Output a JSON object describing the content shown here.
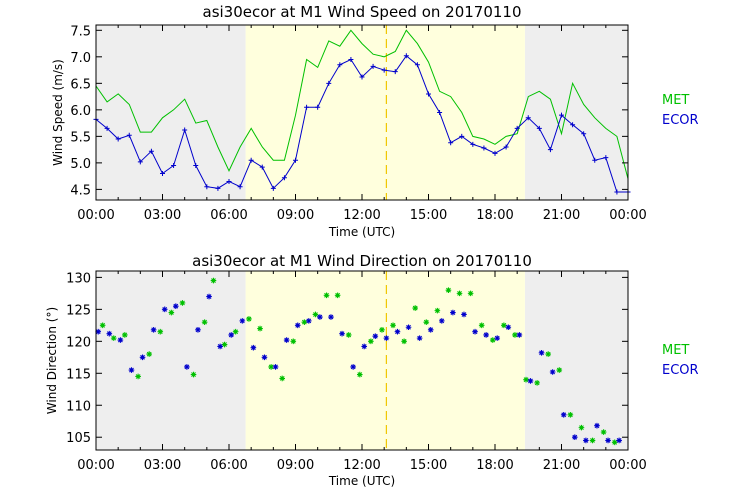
{
  "chart_data": [
    {
      "type": "line",
      "title": "asi30ecor at M1 Wind Speed on 20170110",
      "xlabel": "Time (UTC)",
      "ylabel": "Wind Speed (m/s)",
      "xlim": [
        0,
        24
      ],
      "ylim": [
        4.3,
        7.6
      ],
      "x_ticks": [
        "00:00",
        "03:00",
        "06:00",
        "09:00",
        "12:00",
        "15:00",
        "18:00",
        "21:00",
        "00:00"
      ],
      "y_ticks": [
        "4.5",
        "5.0",
        "5.5",
        "6.0",
        "6.5",
        "7.0",
        "7.5"
      ],
      "y_tick_values": [
        4.5,
        5.0,
        5.5,
        6.0,
        6.5,
        7.0,
        7.5
      ],
      "shaded_night": [
        [
          0,
          6.75
        ],
        [
          19.35,
          24
        ]
      ],
      "shaded_day": [
        6.75,
        19.35
      ],
      "dashed_line_x": 13.1,
      "legend": [
        {
          "label": "MET",
          "color": "#00c000"
        },
        {
          "label": "ECOR",
          "color": "#0000cc"
        }
      ],
      "series": [
        {
          "name": "MET",
          "color": "#00c000",
          "x": [
            0,
            0.5,
            1,
            1.5,
            2,
            2.5,
            3,
            3.5,
            4,
            4.5,
            5,
            5.5,
            6,
            6.5,
            7,
            7.5,
            8,
            8.5,
            9,
            9.5,
            10,
            10.5,
            11,
            11.5,
            12,
            12.5,
            13,
            13.5,
            14,
            14.5,
            15,
            15.5,
            16,
            16.5,
            17,
            17.5,
            18,
            18.5,
            19,
            19.5,
            20,
            20.5,
            21,
            21.5,
            22,
            22.5,
            23,
            23.5,
            24
          ],
          "values": [
            6.45,
            6.15,
            6.3,
            6.1,
            5.58,
            5.58,
            5.85,
            6.0,
            6.2,
            5.75,
            5.8,
            5.3,
            4.85,
            5.3,
            5.65,
            5.3,
            5.05,
            5.05,
            5.9,
            6.95,
            6.8,
            7.3,
            7.2,
            7.5,
            7.25,
            7.05,
            7.0,
            7.1,
            7.5,
            7.25,
            6.9,
            6.35,
            6.25,
            5.95,
            5.5,
            5.45,
            5.35,
            5.5,
            5.55,
            6.25,
            6.35,
            6.2,
            5.55,
            6.5,
            6.1,
            5.85,
            5.65,
            5.5,
            4.7
          ]
        },
        {
          "name": "ECOR",
          "color": "#0000cc",
          "x": [
            0,
            0.5,
            1,
            1.5,
            2,
            2.5,
            3,
            3.5,
            4,
            4.5,
            5,
            5.5,
            6,
            6.5,
            7,
            7.5,
            8,
            8.5,
            9,
            9.5,
            10,
            10.5,
            11,
            11.5,
            12,
            12.5,
            13,
            13.5,
            14,
            14.5,
            15,
            15.5,
            16,
            16.5,
            17,
            17.5,
            18,
            18.5,
            19,
            19.5,
            20,
            20.5,
            21,
            21.5,
            22,
            22.5,
            23,
            23.5,
            24
          ],
          "values": [
            5.82,
            5.65,
            5.45,
            5.52,
            5.02,
            5.22,
            4.8,
            4.95,
            5.62,
            4.95,
            4.55,
            4.52,
            4.65,
            4.55,
            5.05,
            4.92,
            4.52,
            4.72,
            5.05,
            6.05,
            6.05,
            6.5,
            6.85,
            6.95,
            6.62,
            6.82,
            6.75,
            6.72,
            7.02,
            6.85,
            6.3,
            5.95,
            5.38,
            5.5,
            5.35,
            5.28,
            5.18,
            5.3,
            5.65,
            5.85,
            5.65,
            5.25,
            5.9,
            5.72,
            5.55,
            5.05,
            5.1,
            4.45,
            4.45
          ]
        }
      ]
    },
    {
      "type": "scatter",
      "title": "asi30ecor at M1 Wind Direction on 20170110",
      "xlabel": "Time (UTC)",
      "ylabel": "Wind Direction (°)",
      "xlim": [
        0,
        24
      ],
      "ylim": [
        103,
        131
      ],
      "x_ticks": [
        "00:00",
        "03:00",
        "06:00",
        "09:00",
        "12:00",
        "15:00",
        "18:00",
        "21:00",
        "00:00"
      ],
      "y_ticks": [
        "105",
        "110",
        "115",
        "120",
        "125",
        "130"
      ],
      "y_tick_values": [
        105,
        110,
        115,
        120,
        125,
        130
      ],
      "shaded_night": [
        [
          0,
          6.75
        ],
        [
          19.35,
          24
        ]
      ],
      "shaded_day": [
        6.75,
        19.35
      ],
      "dashed_line_x": 13.1,
      "legend": [
        {
          "label": "MET",
          "color": "#00c000"
        },
        {
          "label": "ECOR",
          "color": "#0000cc"
        }
      ],
      "series": [
        {
          "name": "MET",
          "color": "#00c000",
          "x": [
            0.3,
            0.8,
            1.3,
            1.9,
            2.4,
            2.9,
            3.4,
            3.9,
            4.4,
            4.9,
            5.3,
            5.8,
            6.3,
            6.9,
            7.4,
            7.9,
            8.4,
            8.9,
            9.4,
            9.9,
            10.4,
            10.9,
            11.4,
            11.9,
            12.4,
            12.9,
            13.4,
            13.9,
            14.4,
            14.9,
            15.4,
            15.9,
            16.4,
            16.9,
            17.4,
            17.9,
            18.4,
            18.9,
            19.4,
            19.9,
            20.4,
            20.9,
            21.4,
            21.9,
            22.4,
            22.9,
            23.4
          ],
          "values": [
            122.5,
            120.5,
            121.0,
            114.5,
            118.0,
            121.5,
            124.5,
            126.0,
            114.8,
            123.0,
            129.5,
            119.5,
            121.5,
            123.5,
            122.0,
            116.0,
            114.2,
            120.0,
            123.0,
            124.2,
            127.2,
            127.2,
            121.0,
            114.8,
            120.0,
            121.8,
            122.5,
            120.0,
            125.2,
            123.0,
            124.8,
            128.0,
            127.5,
            127.5,
            122.5,
            120.2,
            122.5,
            121.0,
            114.0,
            113.5,
            118.0,
            115.5,
            108.5,
            106.5,
            104.5,
            105.8,
            104.2
          ]
        },
        {
          "name": "ECOR",
          "color": "#0000cc",
          "x": [
            0.1,
            0.6,
            1.1,
            1.6,
            2.1,
            2.6,
            3.1,
            3.6,
            4.1,
            4.6,
            5.1,
            5.6,
            6.1,
            6.6,
            7.1,
            7.6,
            8.1,
            8.6,
            9.1,
            9.6,
            10.1,
            10.6,
            11.1,
            11.6,
            12.1,
            12.6,
            13.1,
            13.6,
            14.1,
            14.6,
            15.1,
            15.6,
            16.1,
            16.6,
            17.1,
            17.6,
            18.1,
            18.6,
            19.1,
            19.6,
            20.1,
            20.6,
            21.1,
            21.6,
            22.1,
            22.6,
            23.1,
            23.6
          ],
          "values": [
            121.5,
            121.2,
            120.2,
            115.5,
            117.5,
            121.8,
            125.0,
            125.5,
            116.0,
            121.8,
            127.0,
            119.2,
            121.0,
            123.2,
            119.0,
            117.5,
            116.0,
            120.2,
            122.5,
            123.2,
            123.8,
            123.8,
            121.2,
            116.0,
            119.2,
            120.8,
            120.5,
            121.5,
            122.2,
            120.5,
            121.8,
            123.2,
            124.5,
            124.2,
            121.5,
            121.0,
            120.5,
            122.2,
            121.0,
            113.8,
            118.2,
            115.2,
            108.5,
            105.0,
            104.5,
            106.8,
            104.5,
            104.5
          ]
        }
      ]
    }
  ]
}
